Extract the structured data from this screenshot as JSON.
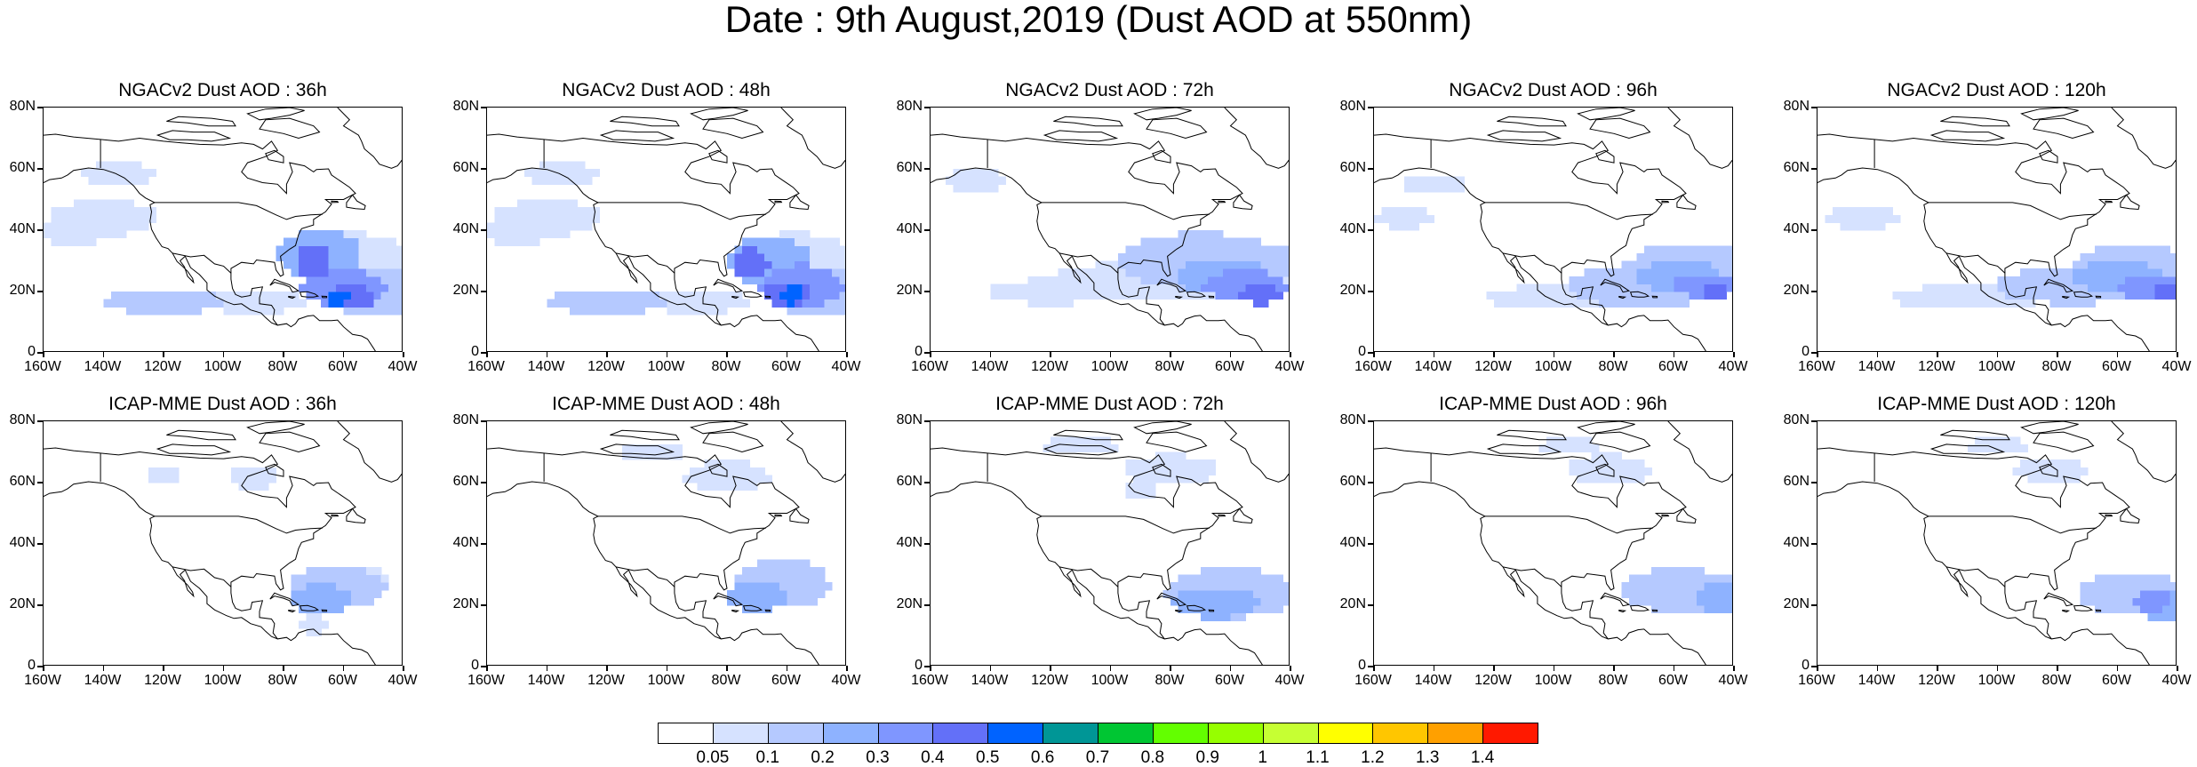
{
  "title": "Date : 9th August,2019 (Dust AOD at 550nm)",
  "panels": [
    {
      "title": "NGACv2 Dust AOD : 36h",
      "model": "NGACv2",
      "lead": "36h"
    },
    {
      "title": "NGACv2 Dust AOD : 48h",
      "model": "NGACv2",
      "lead": "48h"
    },
    {
      "title": "NGACv2 Dust AOD : 72h",
      "model": "NGACv2",
      "lead": "72h"
    },
    {
      "title": "NGACv2 Dust AOD : 96h",
      "model": "NGACv2",
      "lead": "96h"
    },
    {
      "title": "NGACv2 Dust AOD : 120h",
      "model": "NGACv2",
      "lead": "120h"
    },
    {
      "title": "ICAP-MME Dust AOD : 36h",
      "model": "ICAP-MME",
      "lead": "36h"
    },
    {
      "title": "ICAP-MME Dust AOD : 48h",
      "model": "ICAP-MME",
      "lead": "48h"
    },
    {
      "title": "ICAP-MME Dust AOD : 72h",
      "model": "ICAP-MME",
      "lead": "72h"
    },
    {
      "title": "ICAP-MME Dust AOD : 96h",
      "model": "ICAP-MME",
      "lead": "96h"
    },
    {
      "title": "ICAP-MME Dust AOD : 120h",
      "model": "ICAP-MME",
      "lead": "120h"
    }
  ],
  "axes": {
    "lat_ticks": [
      "80N",
      "60N",
      "40N",
      "20N",
      "0"
    ],
    "lon_ticks": [
      "160W",
      "140W",
      "120W",
      "100W",
      "80W",
      "60W",
      "40W"
    ],
    "lat_range": [
      0,
      80
    ],
    "lon_range": [
      -160,
      -40
    ]
  },
  "colorbar": {
    "labels": [
      "0.05",
      "0.1",
      "0.2",
      "0.3",
      "0.4",
      "0.5",
      "0.6",
      "0.7",
      "0.8",
      "0.9",
      "1",
      "1.1",
      "1.2",
      "1.3",
      "1.4"
    ],
    "colors": [
      "#ffffff",
      "#d6e2ff",
      "#b5c9ff",
      "#8eb2ff",
      "#7f96ff",
      "#6370f8",
      "#0063ff",
      "#009696",
      "#00c633",
      "#63ff00",
      "#96ff00",
      "#c6ff33",
      "#ffff00",
      "#ffc600",
      "#ffa000",
      "#ff7c00",
      "#ff1900"
    ]
  },
  "colors": {
    "coastline": "#000000",
    "background": "#ffffff"
  }
}
